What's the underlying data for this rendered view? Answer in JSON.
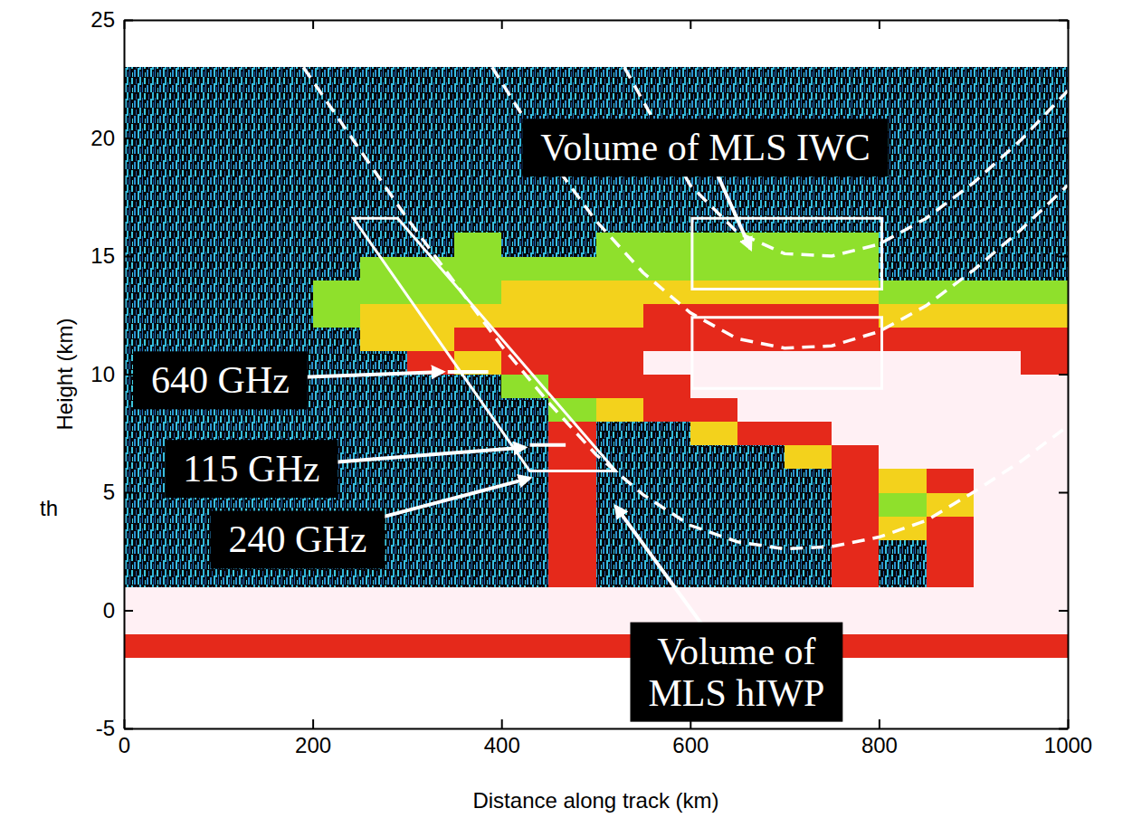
{
  "chart_data": {
    "type": "heatmap",
    "x_label": "Distance along track (km)",
    "y_label": "Height (km)",
    "xlim": [
      0,
      1000
    ],
    "ylim": [
      -5,
      25
    ],
    "xticks": [
      0,
      200,
      400,
      600,
      800,
      1000
    ],
    "yticks": [
      -5,
      0,
      5,
      10,
      15,
      20,
      25
    ],
    "x": [
      25,
      75,
      125,
      175,
      225,
      275,
      325,
      375,
      425,
      475,
      525,
      575,
      625,
      675,
      725,
      775,
      825,
      875,
      925,
      975
    ],
    "y": [
      -1.5,
      -0.5,
      0.5,
      1.5,
      2.5,
      3.5,
      4.5,
      5.5,
      6.5,
      7.5,
      8.5,
      9.5,
      10.5,
      11.5,
      12.5,
      13.5,
      14.5,
      15.5,
      16.5,
      17.5,
      18.5,
      19.5,
      20.5,
      21.5,
      22.5
    ],
    "z": [
      [
        3,
        3,
        3,
        3,
        3,
        3,
        3,
        3,
        3,
        3,
        3,
        3,
        3,
        3,
        3,
        3,
        3,
        3,
        3,
        3
      ],
      [
        4,
        4,
        4,
        4,
        4,
        4,
        4,
        4,
        4,
        4,
        4,
        4,
        4,
        4,
        4,
        4,
        4,
        4,
        4,
        4
      ],
      [
        4,
        4,
        4,
        4,
        4,
        4,
        4,
        4,
        4,
        4,
        4,
        4,
        4,
        4,
        4,
        4,
        4,
        4,
        4,
        4
      ],
      [
        0,
        0,
        0,
        0,
        0,
        0,
        0,
        0,
        0,
        3,
        0,
        0,
        0,
        0,
        0,
        3,
        0,
        3,
        4,
        4
      ],
      [
        0,
        0,
        0,
        0,
        0,
        0,
        0,
        0,
        0,
        3,
        0,
        0,
        0,
        0,
        0,
        3,
        0,
        3,
        4,
        4
      ],
      [
        0,
        0,
        0,
        0,
        0,
        0,
        0,
        0,
        0,
        3,
        0,
        0,
        0,
        0,
        0,
        3,
        2,
        3,
        4,
        4
      ],
      [
        0,
        0,
        0,
        0,
        0,
        0,
        0,
        0,
        0,
        3,
        0,
        0,
        0,
        0,
        0,
        3,
        1,
        2,
        4,
        4
      ],
      [
        0,
        0,
        0,
        0,
        0,
        0,
        0,
        0,
        0,
        3,
        0,
        0,
        0,
        0,
        0,
        3,
        2,
        3,
        4,
        4
      ],
      [
        0,
        0,
        0,
        0,
        0,
        0,
        0,
        0,
        0,
        3,
        0,
        0,
        0,
        0,
        2,
        3,
        4,
        4,
        4,
        4
      ],
      [
        0,
        0,
        0,
        0,
        0,
        0,
        0,
        0,
        0,
        3,
        0,
        0,
        2,
        3,
        3,
        4,
        4,
        4,
        4,
        4
      ],
      [
        0,
        0,
        0,
        0,
        0,
        0,
        0,
        0,
        0,
        1,
        2,
        3,
        3,
        4,
        4,
        4,
        4,
        4,
        4,
        4
      ],
      [
        0,
        0,
        0,
        0,
        0,
        0,
        0,
        0,
        1,
        3,
        3,
        3,
        4,
        4,
        4,
        4,
        4,
        4,
        4,
        4
      ],
      [
        0,
        0,
        0,
        0,
        0,
        0,
        3,
        2,
        3,
        3,
        3,
        4,
        4,
        4,
        4,
        4,
        4,
        4,
        4,
        3
      ],
      [
        0,
        0,
        0,
        0,
        0,
        2,
        2,
        3,
        3,
        3,
        3,
        3,
        3,
        3,
        3,
        3,
        3,
        3,
        3,
        3
      ],
      [
        0,
        0,
        0,
        0,
        1,
        2,
        2,
        2,
        2,
        2,
        2,
        3,
        3,
        3,
        3,
        3,
        2,
        2,
        2,
        2
      ],
      [
        0,
        0,
        0,
        0,
        1,
        1,
        1,
        1,
        2,
        2,
        2,
        2,
        2,
        2,
        2,
        2,
        1,
        1,
        1,
        1
      ],
      [
        0,
        0,
        0,
        0,
        0,
        1,
        1,
        1,
        1,
        1,
        1,
        1,
        1,
        1,
        1,
        1,
        0,
        0,
        0,
        0
      ],
      [
        0,
        0,
        0,
        0,
        0,
        0,
        0,
        1,
        0,
        0,
        1,
        1,
        1,
        1,
        1,
        1,
        0,
        0,
        0,
        0
      ],
      [
        0,
        0,
        0,
        0,
        0,
        0,
        0,
        0,
        0,
        0,
        0,
        0,
        0,
        0,
        0,
        0,
        0,
        0,
        0,
        0
      ],
      [
        0,
        0,
        0,
        0,
        0,
        0,
        0,
        0,
        0,
        0,
        0,
        0,
        0,
        0,
        0,
        0,
        0,
        0,
        0,
        0
      ],
      [
        0,
        0,
        0,
        0,
        0,
        0,
        0,
        0,
        0,
        0,
        0,
        0,
        0,
        0,
        0,
        0,
        0,
        0,
        0,
        0
      ],
      [
        0,
        0,
        0,
        0,
        0,
        0,
        0,
        0,
        0,
        0,
        0,
        0,
        0,
        0,
        0,
        0,
        0,
        0,
        0,
        0
      ],
      [
        0,
        0,
        0,
        0,
        0,
        0,
        0,
        0,
        0,
        0,
        0,
        0,
        0,
        0,
        0,
        0,
        0,
        0,
        0,
        0
      ],
      [
        0,
        0,
        0,
        0,
        0,
        0,
        0,
        0,
        0,
        0,
        0,
        0,
        0,
        0,
        0,
        0,
        0,
        0,
        0,
        0
      ],
      [
        0,
        0,
        0,
        0,
        0,
        0,
        0,
        0,
        0,
        0,
        0,
        0,
        0,
        0,
        0,
        0,
        0,
        0,
        0,
        0
      ]
    ],
    "lines": [
      {
        "line_style": "dashed",
        "color": "#ffffff",
        "x": [
          190,
          250,
          300,
          350,
          400,
          450,
          500,
          550,
          600,
          650,
          700,
          750,
          800,
          850,
          900,
          950,
          1000
        ],
        "y": [
          23,
          19.5,
          16.6,
          13.9,
          11.2,
          8.8,
          6.6,
          4.9,
          3.6,
          2.9,
          2.6,
          2.7,
          3.1,
          3.8,
          5.0,
          6.3,
          7.8
        ]
      },
      {
        "line_style": "dashed",
        "color": "#ffffff",
        "x": [
          390,
          450,
          500,
          550,
          600,
          650,
          700,
          750,
          800,
          850,
          900,
          950,
          1000
        ],
        "y": [
          23,
          19.2,
          16.5,
          14.3,
          12.6,
          11.5,
          11.1,
          11.2,
          11.8,
          12.9,
          14.4,
          16.1,
          18.0
        ]
      },
      {
        "line_style": "dashed",
        "color": "#ffffff",
        "x": [
          530,
          600,
          650,
          700,
          750,
          800,
          850,
          900,
          950,
          1000
        ],
        "y": [
          23,
          18.0,
          16.0,
          15.1,
          15.0,
          15.5,
          16.6,
          18.1,
          19.9,
          22.0
        ]
      },
      {
        "line_style": "solid",
        "color": "#ffffff",
        "x": [
          343,
          386
        ],
        "y": [
          10.1,
          10.1
        ]
      },
      {
        "line_style": "solid",
        "color": "#ffffff",
        "x": [
          430,
          468
        ],
        "y": [
          7.0,
          7.0
        ]
      }
    ],
    "shapes": [
      {
        "color": "#ffffff",
        "points": [
          [
            243,
            16.6
          ],
          [
            290,
            16.6
          ],
          [
            521,
            5.9
          ],
          [
            430,
            5.9
          ]
        ]
      },
      {
        "color": "#ffffff",
        "points": [
          [
            602,
            16.6
          ],
          [
            803,
            16.6
          ],
          [
            803,
            13.6
          ],
          [
            602,
            13.6
          ]
        ]
      },
      {
        "color": "#ffffff",
        "points": [
          [
            602,
            12.4
          ],
          [
            803,
            12.4
          ],
          [
            803,
            9.4
          ],
          [
            602,
            9.4
          ]
        ]
      }
    ],
    "annotations": [
      {
        "text": "Volume of MLS IWC",
        "x": 616,
        "y": 19.6,
        "arrow_x": 664,
        "arrow_y": 15.3
      },
      {
        "text": "640 GHz",
        "x": 102,
        "y": 9.75,
        "arrow_x": 338,
        "arrow_y": 10.1
      },
      {
        "text": "115 GHz",
        "x": 135,
        "y": 6.0,
        "arrow_x": 425,
        "arrow_y": 6.9
      },
      {
        "text": "240 GHz",
        "x": 184,
        "y": 3.0,
        "arrow_x": 430,
        "arrow_y": 5.6
      },
      {
        "text": [
          "Volume of",
          "MLS hIWP"
        ],
        "x": 649,
        "y": -2.6,
        "arrow_x": 521,
        "arrow_y": 4.4
      }
    ],
    "edge_text": "th"
  }
}
